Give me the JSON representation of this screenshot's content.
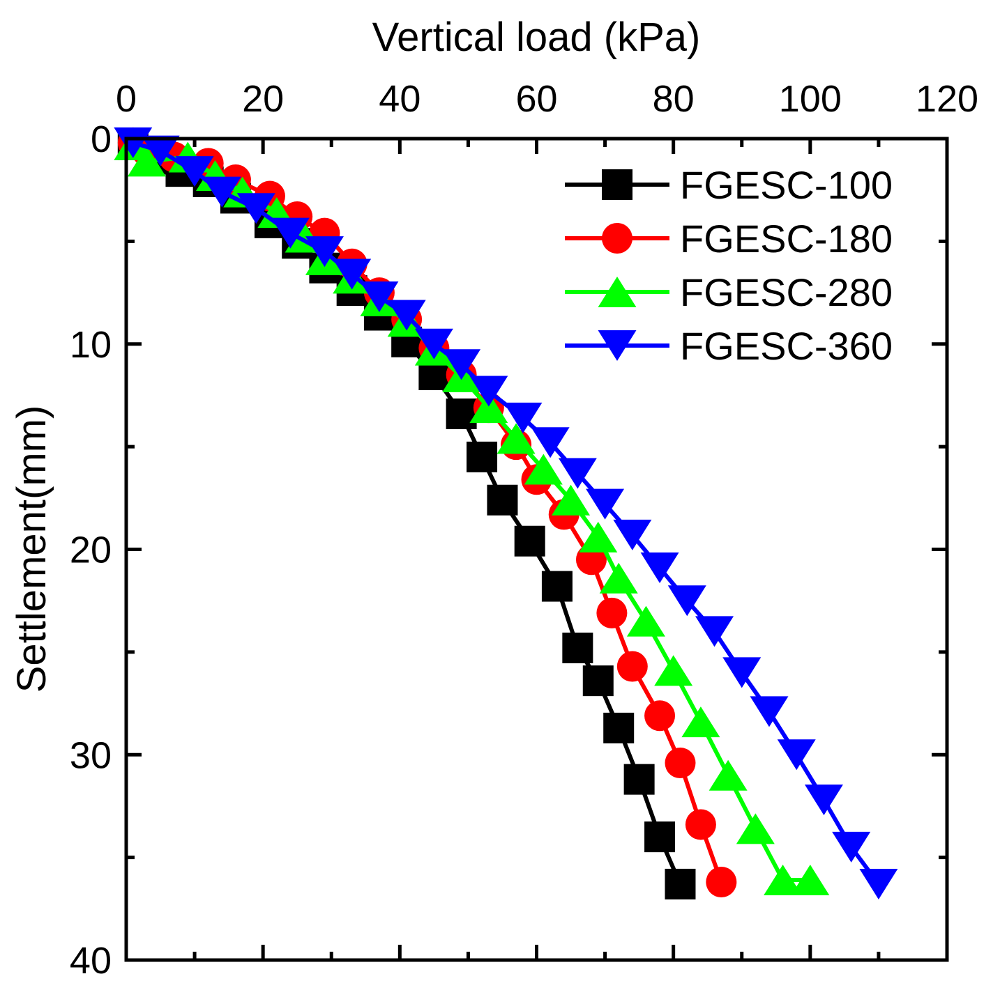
{
  "chart_data": {
    "type": "line",
    "title": "",
    "xlabel": "Vertical load (kPa)",
    "ylabel": "Settlement(mm)",
    "xlim": [
      0,
      120
    ],
    "ylim": [
      0,
      40
    ],
    "x_axis_position": "top",
    "y_axis_inverted": true,
    "grid": false,
    "legend_position": "top-right",
    "xticks": [
      "0",
      "20",
      "40",
      "60",
      "80",
      "100",
      "120"
    ],
    "yticks": [
      "0",
      "10",
      "20",
      "30",
      "40"
    ],
    "series": [
      {
        "name": "FGESC-100",
        "color": "#000000",
        "marker": "square",
        "x": [
          1,
          4,
          8,
          12,
          16,
          21,
          25,
          29,
          33,
          37,
          41,
          45,
          49,
          52,
          55,
          59,
          63,
          66,
          69,
          72,
          75,
          78,
          81
        ],
        "y": [
          0.3,
          1.0,
          1.6,
          2.1,
          2.9,
          4.1,
          5.1,
          6.3,
          7.4,
          8.6,
          9.9,
          11.5,
          13.4,
          15.5,
          17.6,
          19.6,
          21.8,
          24.8,
          26.4,
          28.7,
          31.2,
          34.0,
          36.3
        ]
      },
      {
        "name": "FGESC-180",
        "color": "#ff0000",
        "marker": "circle",
        "x": [
          1,
          3,
          7,
          12,
          16,
          21,
          25,
          29,
          33,
          37,
          41,
          45,
          49,
          53,
          57,
          60,
          64,
          68,
          71,
          74,
          78,
          81,
          84,
          87
        ],
        "y": [
          0.2,
          0.6,
          0.9,
          1.2,
          2.0,
          2.8,
          3.8,
          4.6,
          6.1,
          7.5,
          8.8,
          10.2,
          11.5,
          13.1,
          14.9,
          16.6,
          18.3,
          20.5,
          23.1,
          25.7,
          28.1,
          30.4,
          33.4,
          36.2
        ]
      },
      {
        "name": "FGESC-280",
        "color": "#00ff00",
        "marker": "triangle-up",
        "x": [
          1,
          3,
          9,
          13,
          17,
          22,
          26,
          29,
          33,
          37,
          41,
          45,
          49,
          53,
          57,
          61,
          65,
          69,
          72,
          76,
          80,
          84,
          88,
          92,
          96,
          100
        ],
        "y": [
          0.3,
          1.1,
          0.9,
          1.8,
          2.6,
          3.6,
          4.8,
          5.9,
          6.8,
          7.9,
          8.9,
          10.3,
          11.6,
          13.1,
          14.6,
          16.1,
          17.6,
          19.4,
          21.4,
          23.5,
          25.9,
          28.4,
          31.0,
          33.6,
          36.1,
          36.1
        ]
      },
      {
        "name": "FGESC-360",
        "color": "#0000ff",
        "marker": "triangle-down",
        "x": [
          1,
          5,
          10,
          14,
          19,
          24,
          29,
          33,
          37,
          41,
          45,
          49,
          53,
          58,
          62,
          66,
          70,
          74,
          78,
          82,
          86,
          90,
          94,
          98,
          102,
          106,
          110
        ],
        "y": [
          0.2,
          0.6,
          1.6,
          2.6,
          3.4,
          4.6,
          5.5,
          6.6,
          7.7,
          8.6,
          10.0,
          11.0,
          12.3,
          13.6,
          14.8,
          16.3,
          17.8,
          19.3,
          20.9,
          22.5,
          24.0,
          26.0,
          27.9,
          30.0,
          32.2,
          34.5,
          36.3
        ]
      }
    ]
  }
}
